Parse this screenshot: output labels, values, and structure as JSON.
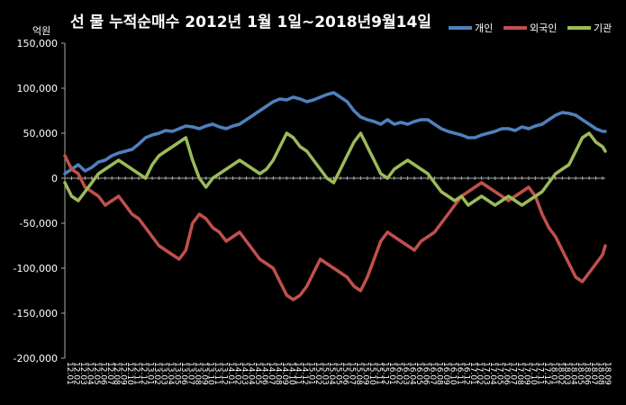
{
  "chart_data": {
    "type": "line",
    "title": "선 물 누적순매수 2012년 1월 1일~2018년9월14일",
    "unit_label": "억원",
    "ylim": [
      -200000,
      150000
    ],
    "y_ticks": [
      "150,000",
      "100,000",
      "50,000",
      "0",
      "-50,000",
      "-100,000",
      "-150,000",
      "-200,000"
    ],
    "y_tick_values": [
      150000,
      100000,
      50000,
      0,
      -50000,
      -100000,
      -150000,
      -200000
    ],
    "grid": false,
    "legend_position": "top-right",
    "x_ticks": [
      "12.01",
      "12.02",
      "12.03",
      "12.04",
      "12.05",
      "12.06",
      "12.07",
      "12.08",
      "12.09",
      "12.10",
      "12.11",
      "12.12",
      "13.01",
      "13.02",
      "13.03",
      "13.04",
      "13.05",
      "13.06",
      "13.07",
      "13.08",
      "13.09",
      "13.10",
      "13.11",
      "13.12",
      "14.01",
      "14.02",
      "14.03",
      "14.04",
      "14.05",
      "14.06",
      "14.07",
      "14.08",
      "14.09",
      "14.10",
      "14.11",
      "14.12",
      "15.01",
      "15.02",
      "15.03",
      "15.04",
      "15.05",
      "15.06",
      "15.07",
      "15.08",
      "15.09",
      "15.10",
      "15.11",
      "15.12",
      "16.01",
      "16.02",
      "16.03",
      "16.04",
      "16.05",
      "16.06",
      "16.07",
      "16.08",
      "16.09",
      "16.10",
      "16.11",
      "16.12",
      "17.01",
      "17.02",
      "17.03",
      "17.04",
      "17.05",
      "17.06",
      "17.07",
      "17.08",
      "17.09",
      "17.10",
      "17.11",
      "17.12",
      "18.01",
      "18.02",
      "18.03",
      "18.04",
      "18.05",
      "18.06",
      "18.07",
      "18.08",
      "18.09"
    ],
    "x_range": [
      0,
      80.4
    ],
    "series": [
      {
        "name": "개인",
        "color": "#4f81bd",
        "points": [
          [
            0,
            5000
          ],
          [
            1,
            10000
          ],
          [
            2,
            15000
          ],
          [
            3,
            8000
          ],
          [
            4,
            12000
          ],
          [
            5,
            18000
          ],
          [
            6,
            20000
          ],
          [
            7,
            25000
          ],
          [
            8,
            28000
          ],
          [
            9,
            30000
          ],
          [
            10,
            32000
          ],
          [
            11,
            38000
          ],
          [
            12,
            45000
          ],
          [
            13,
            48000
          ],
          [
            14,
            50000
          ],
          [
            15,
            53000
          ],
          [
            16,
            52000
          ],
          [
            17,
            55000
          ],
          [
            18,
            58000
          ],
          [
            19,
            57000
          ],
          [
            20,
            55000
          ],
          [
            21,
            58000
          ],
          [
            22,
            60000
          ],
          [
            23,
            57000
          ],
          [
            24,
            55000
          ],
          [
            25,
            58000
          ],
          [
            26,
            60000
          ],
          [
            27,
            65000
          ],
          [
            28,
            70000
          ],
          [
            29,
            75000
          ],
          [
            30,
            80000
          ],
          [
            31,
            85000
          ],
          [
            32,
            88000
          ],
          [
            33,
            87000
          ],
          [
            34,
            90000
          ],
          [
            35,
            88000
          ],
          [
            36,
            85000
          ],
          [
            37,
            87000
          ],
          [
            38,
            90000
          ],
          [
            39,
            93000
          ],
          [
            40,
            95000
          ],
          [
            41,
            90000
          ],
          [
            42,
            85000
          ],
          [
            43,
            75000
          ],
          [
            44,
            68000
          ],
          [
            45,
            65000
          ],
          [
            46,
            63000
          ],
          [
            47,
            60000
          ],
          [
            48,
            65000
          ],
          [
            49,
            60000
          ],
          [
            50,
            62000
          ],
          [
            51,
            60000
          ],
          [
            52,
            63000
          ],
          [
            53,
            65000
          ],
          [
            54,
            65000
          ],
          [
            55,
            60000
          ],
          [
            56,
            55000
          ],
          [
            57,
            52000
          ],
          [
            58,
            50000
          ],
          [
            59,
            48000
          ],
          [
            60,
            45000
          ],
          [
            61,
            45000
          ],
          [
            62,
            48000
          ],
          [
            63,
            50000
          ],
          [
            64,
            52000
          ],
          [
            65,
            55000
          ],
          [
            66,
            55000
          ],
          [
            67,
            53000
          ],
          [
            68,
            57000
          ],
          [
            69,
            55000
          ],
          [
            70,
            58000
          ],
          [
            71,
            60000
          ],
          [
            72,
            65000
          ],
          [
            73,
            70000
          ],
          [
            74,
            73000
          ],
          [
            75,
            72000
          ],
          [
            76,
            70000
          ],
          [
            77,
            65000
          ],
          [
            78,
            60000
          ],
          [
            79,
            55000
          ],
          [
            80,
            52000
          ],
          [
            80.4,
            52000
          ]
        ]
      },
      {
        "name": "외국인",
        "color": "#c0504d",
        "points": [
          [
            0,
            25000
          ],
          [
            1,
            10000
          ],
          [
            2,
            5000
          ],
          [
            3,
            -10000
          ],
          [
            4,
            -15000
          ],
          [
            5,
            -20000
          ],
          [
            6,
            -30000
          ],
          [
            7,
            -25000
          ],
          [
            8,
            -20000
          ],
          [
            9,
            -30000
          ],
          [
            10,
            -40000
          ],
          [
            11,
            -45000
          ],
          [
            12,
            -55000
          ],
          [
            13,
            -65000
          ],
          [
            14,
            -75000
          ],
          [
            15,
            -80000
          ],
          [
            16,
            -85000
          ],
          [
            17,
            -90000
          ],
          [
            18,
            -80000
          ],
          [
            19,
            -50000
          ],
          [
            20,
            -40000
          ],
          [
            21,
            -45000
          ],
          [
            22,
            -55000
          ],
          [
            23,
            -60000
          ],
          [
            24,
            -70000
          ],
          [
            25,
            -65000
          ],
          [
            26,
            -60000
          ],
          [
            27,
            -70000
          ],
          [
            28,
            -80000
          ],
          [
            29,
            -90000
          ],
          [
            30,
            -95000
          ],
          [
            31,
            -100000
          ],
          [
            32,
            -115000
          ],
          [
            33,
            -130000
          ],
          [
            34,
            -135000
          ],
          [
            35,
            -130000
          ],
          [
            36,
            -120000
          ],
          [
            37,
            -105000
          ],
          [
            38,
            -90000
          ],
          [
            39,
            -95000
          ],
          [
            40,
            -100000
          ],
          [
            41,
            -105000
          ],
          [
            42,
            -110000
          ],
          [
            43,
            -120000
          ],
          [
            44,
            -125000
          ],
          [
            45,
            -110000
          ],
          [
            46,
            -90000
          ],
          [
            47,
            -70000
          ],
          [
            48,
            -60000
          ],
          [
            49,
            -65000
          ],
          [
            50,
            -70000
          ],
          [
            51,
            -75000
          ],
          [
            52,
            -80000
          ],
          [
            53,
            -70000
          ],
          [
            54,
            -65000
          ],
          [
            55,
            -60000
          ],
          [
            56,
            -50000
          ],
          [
            57,
            -40000
          ],
          [
            58,
            -30000
          ],
          [
            59,
            -20000
          ],
          [
            60,
            -15000
          ],
          [
            61,
            -10000
          ],
          [
            62,
            -5000
          ],
          [
            63,
            -10000
          ],
          [
            64,
            -15000
          ],
          [
            65,
            -20000
          ],
          [
            66,
            -25000
          ],
          [
            67,
            -20000
          ],
          [
            68,
            -15000
          ],
          [
            69,
            -10000
          ],
          [
            70,
            -20000
          ],
          [
            71,
            -40000
          ],
          [
            72,
            -55000
          ],
          [
            73,
            -65000
          ],
          [
            74,
            -80000
          ],
          [
            75,
            -95000
          ],
          [
            76,
            -110000
          ],
          [
            77,
            -115000
          ],
          [
            78,
            -105000
          ],
          [
            79,
            -95000
          ],
          [
            80,
            -85000
          ],
          [
            80.4,
            -75000
          ]
        ]
      },
      {
        "name": "기관",
        "color": "#9bbb59",
        "points": [
          [
            0,
            -5000
          ],
          [
            1,
            -20000
          ],
          [
            2,
            -25000
          ],
          [
            3,
            -15000
          ],
          [
            4,
            -5000
          ],
          [
            5,
            5000
          ],
          [
            6,
            10000
          ],
          [
            7,
            15000
          ],
          [
            8,
            20000
          ],
          [
            9,
            15000
          ],
          [
            10,
            10000
          ],
          [
            11,
            5000
          ],
          [
            12,
            0
          ],
          [
            13,
            15000
          ],
          [
            14,
            25000
          ],
          [
            15,
            30000
          ],
          [
            16,
            35000
          ],
          [
            17,
            40000
          ],
          [
            18,
            45000
          ],
          [
            19,
            20000
          ],
          [
            20,
            0
          ],
          [
            21,
            -10000
          ],
          [
            22,
            0
          ],
          [
            23,
            5000
          ],
          [
            24,
            10000
          ],
          [
            25,
            15000
          ],
          [
            26,
            20000
          ],
          [
            27,
            15000
          ],
          [
            28,
            10000
          ],
          [
            29,
            5000
          ],
          [
            30,
            10000
          ],
          [
            31,
            20000
          ],
          [
            32,
            35000
          ],
          [
            33,
            50000
          ],
          [
            34,
            45000
          ],
          [
            35,
            35000
          ],
          [
            36,
            30000
          ],
          [
            37,
            20000
          ],
          [
            38,
            10000
          ],
          [
            39,
            0
          ],
          [
            40,
            -5000
          ],
          [
            41,
            10000
          ],
          [
            42,
            25000
          ],
          [
            43,
            40000
          ],
          [
            44,
            50000
          ],
          [
            45,
            35000
          ],
          [
            46,
            20000
          ],
          [
            47,
            5000
          ],
          [
            48,
            0
          ],
          [
            49,
            10000
          ],
          [
            50,
            15000
          ],
          [
            51,
            20000
          ],
          [
            52,
            15000
          ],
          [
            53,
            10000
          ],
          [
            54,
            5000
          ],
          [
            55,
            -5000
          ],
          [
            56,
            -15000
          ],
          [
            57,
            -20000
          ],
          [
            58,
            -25000
          ],
          [
            59,
            -20000
          ],
          [
            60,
            -30000
          ],
          [
            61,
            -25000
          ],
          [
            62,
            -20000
          ],
          [
            63,
            -25000
          ],
          [
            64,
            -30000
          ],
          [
            65,
            -25000
          ],
          [
            66,
            -20000
          ],
          [
            67,
            -25000
          ],
          [
            68,
            -30000
          ],
          [
            69,
            -25000
          ],
          [
            70,
            -20000
          ],
          [
            71,
            -15000
          ],
          [
            72,
            -5000
          ],
          [
            73,
            5000
          ],
          [
            74,
            10000
          ],
          [
            75,
            15000
          ],
          [
            76,
            30000
          ],
          [
            77,
            45000
          ],
          [
            78,
            50000
          ],
          [
            79,
            40000
          ],
          [
            80,
            35000
          ],
          [
            80.4,
            30000
          ]
        ]
      }
    ]
  }
}
